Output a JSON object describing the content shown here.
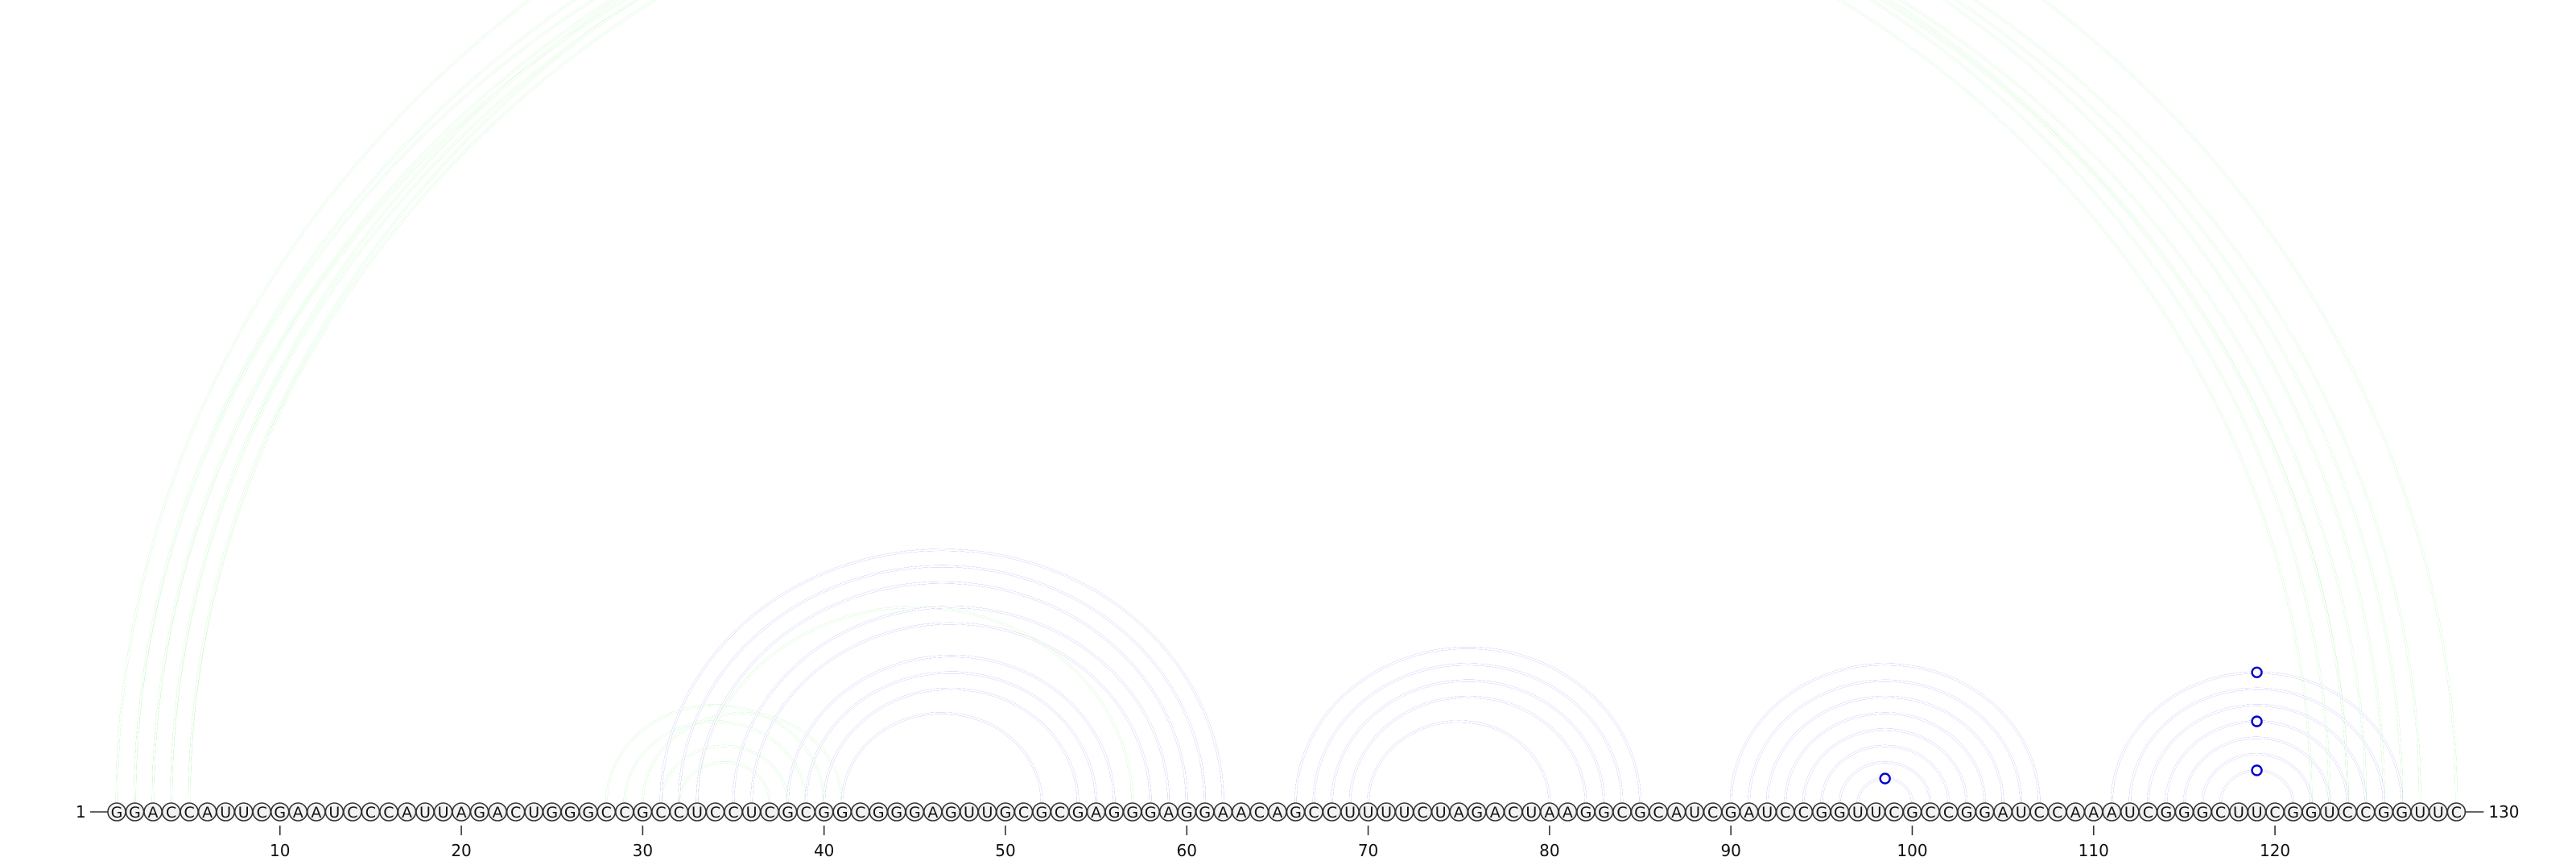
{
  "diagram": {
    "sequence": "GGACCAUUCGAAUCCCAUUAGACUGGGCCGCCUCCUCGCGGCGGGAGUUGCGCGAGGGAGGAACAGCCUUUUCUAGACUAAGGCGCAUCGAUCCGGUUCGCCGGAUCCAAAUCGGGCUUCGGUCCGGUUC",
    "start_label": "1",
    "end_label": "130",
    "ticks": [
      10,
      20,
      30,
      40,
      50,
      60,
      70,
      80,
      90,
      100,
      110,
      120
    ],
    "colors": {
      "green": "#00e000",
      "blue": "#0000cc"
    },
    "arcs": [
      {
        "i": 1,
        "j": 130,
        "color": "green",
        "thin": true,
        "marker": true
      },
      {
        "i": 2,
        "j": 123,
        "color": "green"
      },
      {
        "i": 2,
        "j": 126,
        "color": "green",
        "thin": true
      },
      {
        "i": 3,
        "j": 122,
        "color": "green"
      },
      {
        "i": 3,
        "j": 124,
        "color": "green",
        "thin": true
      },
      {
        "i": 4,
        "j": 124,
        "color": "green"
      },
      {
        "i": 4,
        "j": 127,
        "color": "green",
        "thin": true
      },
      {
        "i": 5,
        "j": 125,
        "color": "green"
      },
      {
        "i": 5,
        "j": 128,
        "color": "green"
      },
      {
        "i": 28,
        "j": 40,
        "color": "green"
      },
      {
        "i": 29,
        "j": 39,
        "color": "green"
      },
      {
        "i": 30,
        "j": 41,
        "color": "green"
      },
      {
        "i": 31,
        "j": 38,
        "color": "green"
      },
      {
        "i": 32,
        "j": 37,
        "color": "green"
      },
      {
        "i": 33,
        "j": 57,
        "color": "green"
      },
      {
        "i": 31,
        "j": 62,
        "color": "blue"
      },
      {
        "i": 32,
        "j": 61,
        "color": "blue"
      },
      {
        "i": 33,
        "j": 60,
        "color": "blue"
      },
      {
        "i": 35,
        "j": 59,
        "color": "blue"
      },
      {
        "i": 36,
        "j": 58,
        "color": "blue"
      },
      {
        "i": 38,
        "j": 56,
        "color": "blue"
      },
      {
        "i": 39,
        "j": 55,
        "color": "blue"
      },
      {
        "i": 40,
        "j": 54,
        "color": "blue"
      },
      {
        "i": 41,
        "j": 52,
        "color": "blue"
      },
      {
        "i": 66,
        "j": 85,
        "color": "blue"
      },
      {
        "i": 67,
        "j": 84,
        "color": "blue"
      },
      {
        "i": 68,
        "j": 83,
        "color": "blue"
      },
      {
        "i": 69,
        "j": 82,
        "color": "blue"
      },
      {
        "i": 70,
        "j": 80,
        "color": "blue"
      },
      {
        "i": 90,
        "j": 107,
        "color": "blue"
      },
      {
        "i": 91,
        "j": 106,
        "color": "blue"
      },
      {
        "i": 92,
        "j": 105,
        "color": "blue"
      },
      {
        "i": 93,
        "j": 104,
        "color": "blue"
      },
      {
        "i": 94,
        "j": 103,
        "color": "blue"
      },
      {
        "i": 95,
        "j": 102,
        "color": "blue"
      },
      {
        "i": 96,
        "j": 101,
        "color": "blue"
      },
      {
        "i": 97,
        "j": 100,
        "color": "blue",
        "marker": true
      },
      {
        "i": 111,
        "j": 127,
        "color": "blue",
        "marker": true
      },
      {
        "i": 112,
        "j": 126,
        "color": "blue"
      },
      {
        "i": 113,
        "j": 125,
        "color": "blue"
      },
      {
        "i": 114,
        "j": 124,
        "color": "blue",
        "marker": true
      },
      {
        "i": 115,
        "j": 123,
        "color": "blue"
      },
      {
        "i": 116,
        "j": 122,
        "color": "blue"
      },
      {
        "i": 117,
        "j": 121,
        "color": "blue",
        "marker": true
      }
    ]
  }
}
